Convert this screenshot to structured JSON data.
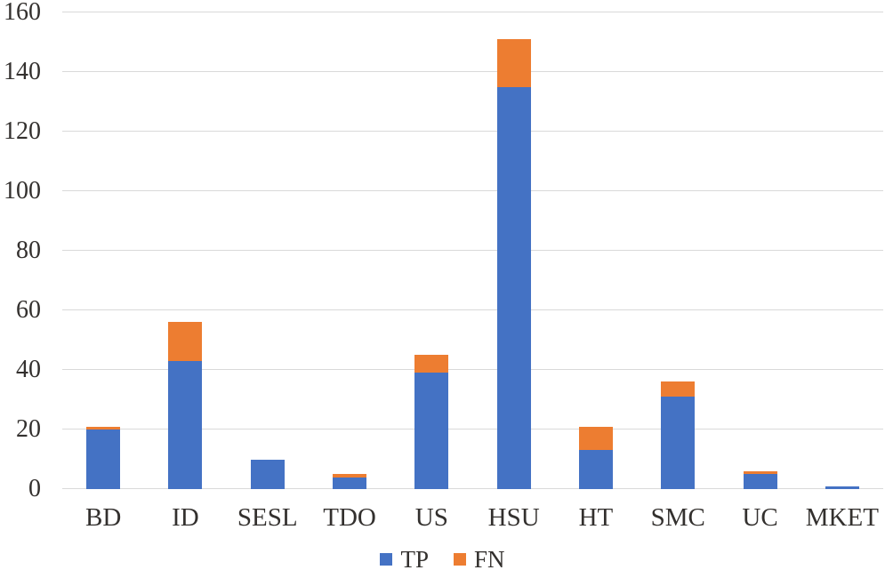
{
  "chart_data": {
    "type": "bar",
    "stacked": true,
    "title": "",
    "xlabel": "",
    "ylabel": "",
    "categories": [
      "BD",
      "ID",
      "SESL",
      "TDO",
      "US",
      "HSU",
      "HT",
      "SMC",
      "UC",
      "MKET"
    ],
    "series": [
      {
        "name": "TP",
        "color": "#4472C4",
        "values": [
          20,
          43,
          10,
          4,
          39,
          135,
          13,
          31,
          5,
          1
        ]
      },
      {
        "name": "FN",
        "color": "#ED7D31",
        "values": [
          1,
          13,
          0,
          1,
          6,
          16,
          8,
          5,
          1,
          0
        ]
      }
    ],
    "ylim": [
      0,
      160
    ],
    "yticks": [
      0,
      20,
      40,
      60,
      80,
      100,
      120,
      140,
      160
    ],
    "grid": true,
    "gridline_color": "#D9D9D9",
    "text_color": "#33302e",
    "legend_position": "bottom",
    "legend": [
      "TP",
      "FN"
    ]
  }
}
